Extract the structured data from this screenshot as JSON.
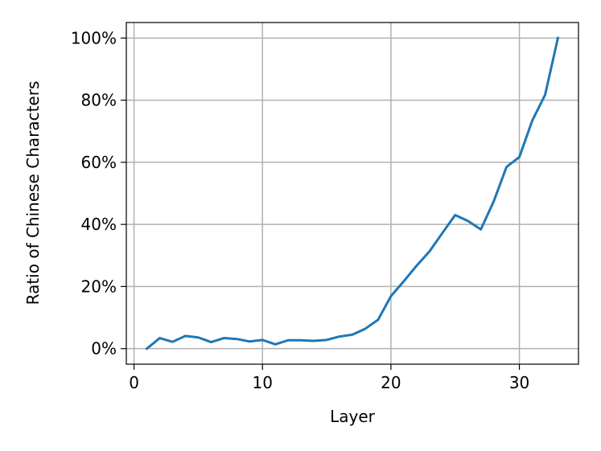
{
  "chart_data": {
    "type": "line",
    "xlabel": "Layer",
    "ylabel": "Ratio of Chinese Characters",
    "xlim": [
      -0.6,
      34.6
    ],
    "ylim": [
      -0.05,
      1.05
    ],
    "xticks": [
      0,
      10,
      20,
      30
    ],
    "xtick_labels": [
      "0",
      "10",
      "20",
      "30"
    ],
    "yticks": [
      0,
      0.2,
      0.4,
      0.6,
      0.8,
      1.0
    ],
    "ytick_labels": [
      "0%",
      "20%",
      "40%",
      "60%",
      "80%",
      "100%"
    ],
    "grid": true,
    "colors": {
      "line": "#1f77b4",
      "grid": "#b0b0b0",
      "axes": "#000000"
    },
    "series": [
      {
        "x": [
          1,
          2,
          3,
          4,
          5,
          6,
          7,
          8,
          9,
          10,
          11,
          12,
          13,
          14,
          15,
          16,
          17,
          18,
          19,
          20,
          21,
          22,
          23,
          24,
          25,
          26,
          27,
          28,
          29,
          30,
          31,
          32,
          33
        ],
        "y": [
          0.0,
          0.034,
          0.022,
          0.041,
          0.036,
          0.021,
          0.034,
          0.031,
          0.023,
          0.028,
          0.014,
          0.027,
          0.027,
          0.025,
          0.028,
          0.039,
          0.045,
          0.064,
          0.093,
          0.169,
          0.217,
          0.267,
          0.313,
          0.372,
          0.43,
          0.411,
          0.384,
          0.474,
          0.585,
          0.617,
          0.734,
          0.817,
          1.0
        ]
      }
    ]
  }
}
